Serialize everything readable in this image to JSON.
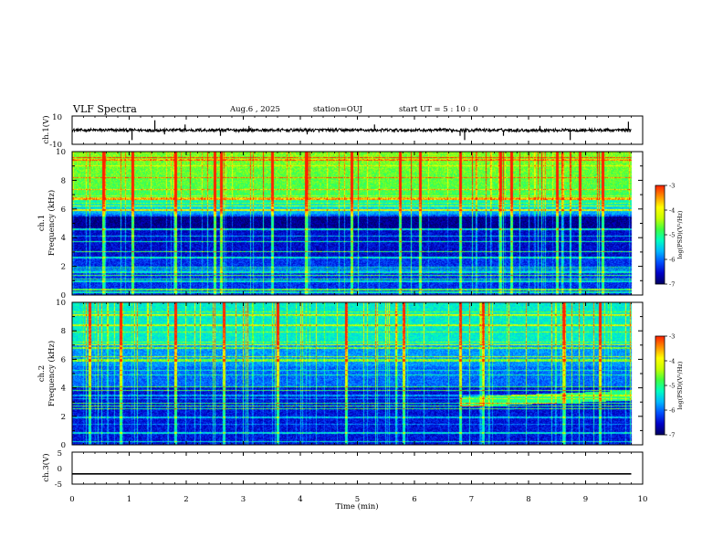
{
  "chart_data": {
    "type": "heatmap",
    "title": "VLF Spectra",
    "header": {
      "date": "Aug.6  , 2025",
      "station": "station=OUJ",
      "start": "start  UT  =   5  : 10 : 0"
    },
    "xlabel": "Time  (min)",
    "xlim": [
      0,
      10
    ],
    "xticks": [
      "0",
      "1",
      "2",
      "3",
      "4",
      "5",
      "6",
      "7",
      "8",
      "9",
      "10"
    ],
    "panels": [
      {
        "id": "ch1v",
        "type": "line",
        "ylabel": "ch.1(V)",
        "ylim": [
          -10,
          10
        ],
        "yticks": [
          "10",
          "-10"
        ],
        "baseline": 0,
        "spikes": [
          {
            "t": 1.05,
            "v": -7
          },
          {
            "t": 1.45,
            "v": 7
          },
          {
            "t": 1.62,
            "v": -3
          },
          {
            "t": 1.98,
            "v": 4
          },
          {
            "t": 2.6,
            "v": -4
          },
          {
            "t": 3.1,
            "v": 3
          },
          {
            "t": 4.12,
            "v": -3
          },
          {
            "t": 5.3,
            "v": 4
          },
          {
            "t": 6.8,
            "v": -4
          },
          {
            "t": 6.88,
            "v": -7
          },
          {
            "t": 7.56,
            "v": -4
          },
          {
            "t": 8.2,
            "v": 3
          },
          {
            "t": 8.73,
            "v": -7
          },
          {
            "t": 9.75,
            "v": 6
          }
        ]
      },
      {
        "id": "ch1",
        "type": "spectrogram",
        "ylabel_lines": [
          "ch.1",
          "Frequency  (kHz)"
        ],
        "ylim": [
          0,
          10
        ],
        "yticks": [
          "0",
          "2",
          "4",
          "6",
          "8",
          "10"
        ],
        "data_end_min": 9.8,
        "colorbar": {
          "label": "log(PSD)(V²/Hz)",
          "ticks": [
            "-3",
            "-4",
            "-5",
            "-6",
            "-7"
          ],
          "range": [
            -7,
            -3
          ]
        }
      },
      {
        "id": "ch2",
        "type": "spectrogram",
        "ylabel_lines": [
          "ch.2",
          "Frequency  (kHz)"
        ],
        "ylim": [
          0,
          10
        ],
        "yticks": [
          "0",
          "2",
          "4",
          "6",
          "8",
          "10"
        ],
        "data_end_min": 9.8,
        "colorbar": {
          "label": "log(PSD)(V²/Hz)",
          "ticks": [
            "-3",
            "-4",
            "-5",
            "-6",
            "-7"
          ],
          "range": [
            -7,
            -3
          ]
        }
      },
      {
        "id": "ch3v",
        "type": "line",
        "ylabel": "ch.3(V)",
        "ylim": [
          -5,
          5
        ],
        "yticks": [
          "5",
          "0",
          "-5"
        ],
        "baseline": -1.8,
        "spikes": []
      }
    ],
    "colors": {
      "colormap": [
        "#000060",
        "#0000c8",
        "#0050ff",
        "#00b8ff",
        "#00ffc0",
        "#40ff40",
        "#c8ff00",
        "#ffff00",
        "#ff9000",
        "#ff2000",
        "#ffffff"
      ]
    }
  }
}
